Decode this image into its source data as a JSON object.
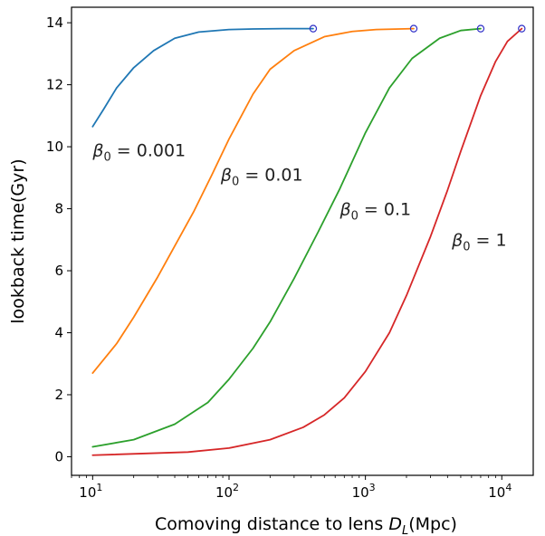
{
  "chart_data": {
    "type": "line",
    "title": "",
    "xlabel": "Comoving distance to lens D_L(Mpc)",
    "ylabel": "lookback time(Gyr)",
    "xscale": "log",
    "xlim": [
      7,
      17000
    ],
    "ylim": [
      -0.6,
      14.5
    ],
    "x_ticks": [
      10,
      100,
      1000,
      10000
    ],
    "x_tick_labels": [
      "10^1",
      "10^2",
      "10^3",
      "10^4"
    ],
    "y_ticks": [
      0,
      2,
      4,
      6,
      8,
      10,
      12,
      14
    ],
    "y_tick_labels": [
      "0",
      "2",
      "4",
      "6",
      "8",
      "10",
      "12",
      "14"
    ],
    "grid": false,
    "legend": "none",
    "endpoint_marker": "open-circle",
    "series": [
      {
        "color": "#1f77b4",
        "x": [
          10,
          12,
          15,
          20,
          28,
          40,
          60,
          100,
          150,
          250,
          414
        ],
        "y": [
          10.65,
          11.2,
          11.9,
          12.55,
          13.1,
          13.5,
          13.7,
          13.78,
          13.8,
          13.81,
          13.81
        ]
      },
      {
        "color": "#ff7f0e",
        "x": [
          10,
          15,
          20,
          30,
          40,
          55,
          75,
          100,
          150,
          200,
          300,
          500,
          800,
          1200,
          2260
        ],
        "y": [
          2.7,
          3.65,
          4.5,
          5.8,
          6.8,
          7.9,
          9.1,
          10.25,
          11.7,
          12.5,
          13.1,
          13.55,
          13.72,
          13.78,
          13.81
        ]
      },
      {
        "color": "#2ca02c",
        "x": [
          10,
          20,
          40,
          70,
          100,
          150,
          200,
          300,
          450,
          650,
          1000,
          1500,
          2200,
          3500,
          5000,
          7000
        ],
        "y": [
          0.32,
          0.55,
          1.05,
          1.75,
          2.5,
          3.5,
          4.35,
          5.75,
          7.25,
          8.65,
          10.45,
          11.9,
          12.85,
          13.5,
          13.75,
          13.81
        ]
      },
      {
        "color": "#d62728",
        "x": [
          10,
          50,
          100,
          200,
          350,
          500,
          700,
          1000,
          1500,
          2000,
          3000,
          4000,
          5000,
          7000,
          9000,
          11000,
          14000
        ],
        "y": [
          0.05,
          0.15,
          0.28,
          0.55,
          0.95,
          1.35,
          1.9,
          2.75,
          4.0,
          5.2,
          7.1,
          8.6,
          9.85,
          11.65,
          12.75,
          13.4,
          13.81
        ]
      }
    ],
    "annotations": [
      {
        "base": "β",
        "sub": "0",
        "rest": " = 0.001",
        "x": 10,
        "y": 9.7
      },
      {
        "base": "β",
        "sub": "0",
        "rest": " = 0.01",
        "x": 87,
        "y": 8.9
      },
      {
        "base": "β",
        "sub": "0",
        "rest": " = 0.1",
        "x": 650,
        "y": 7.8
      },
      {
        "base": "β",
        "sub": "0",
        "rest": " = 1",
        "x": 4300,
        "y": 6.8
      }
    ]
  },
  "colors": {
    "endpoint_marker": "#3030c8",
    "axes": "#000000"
  }
}
